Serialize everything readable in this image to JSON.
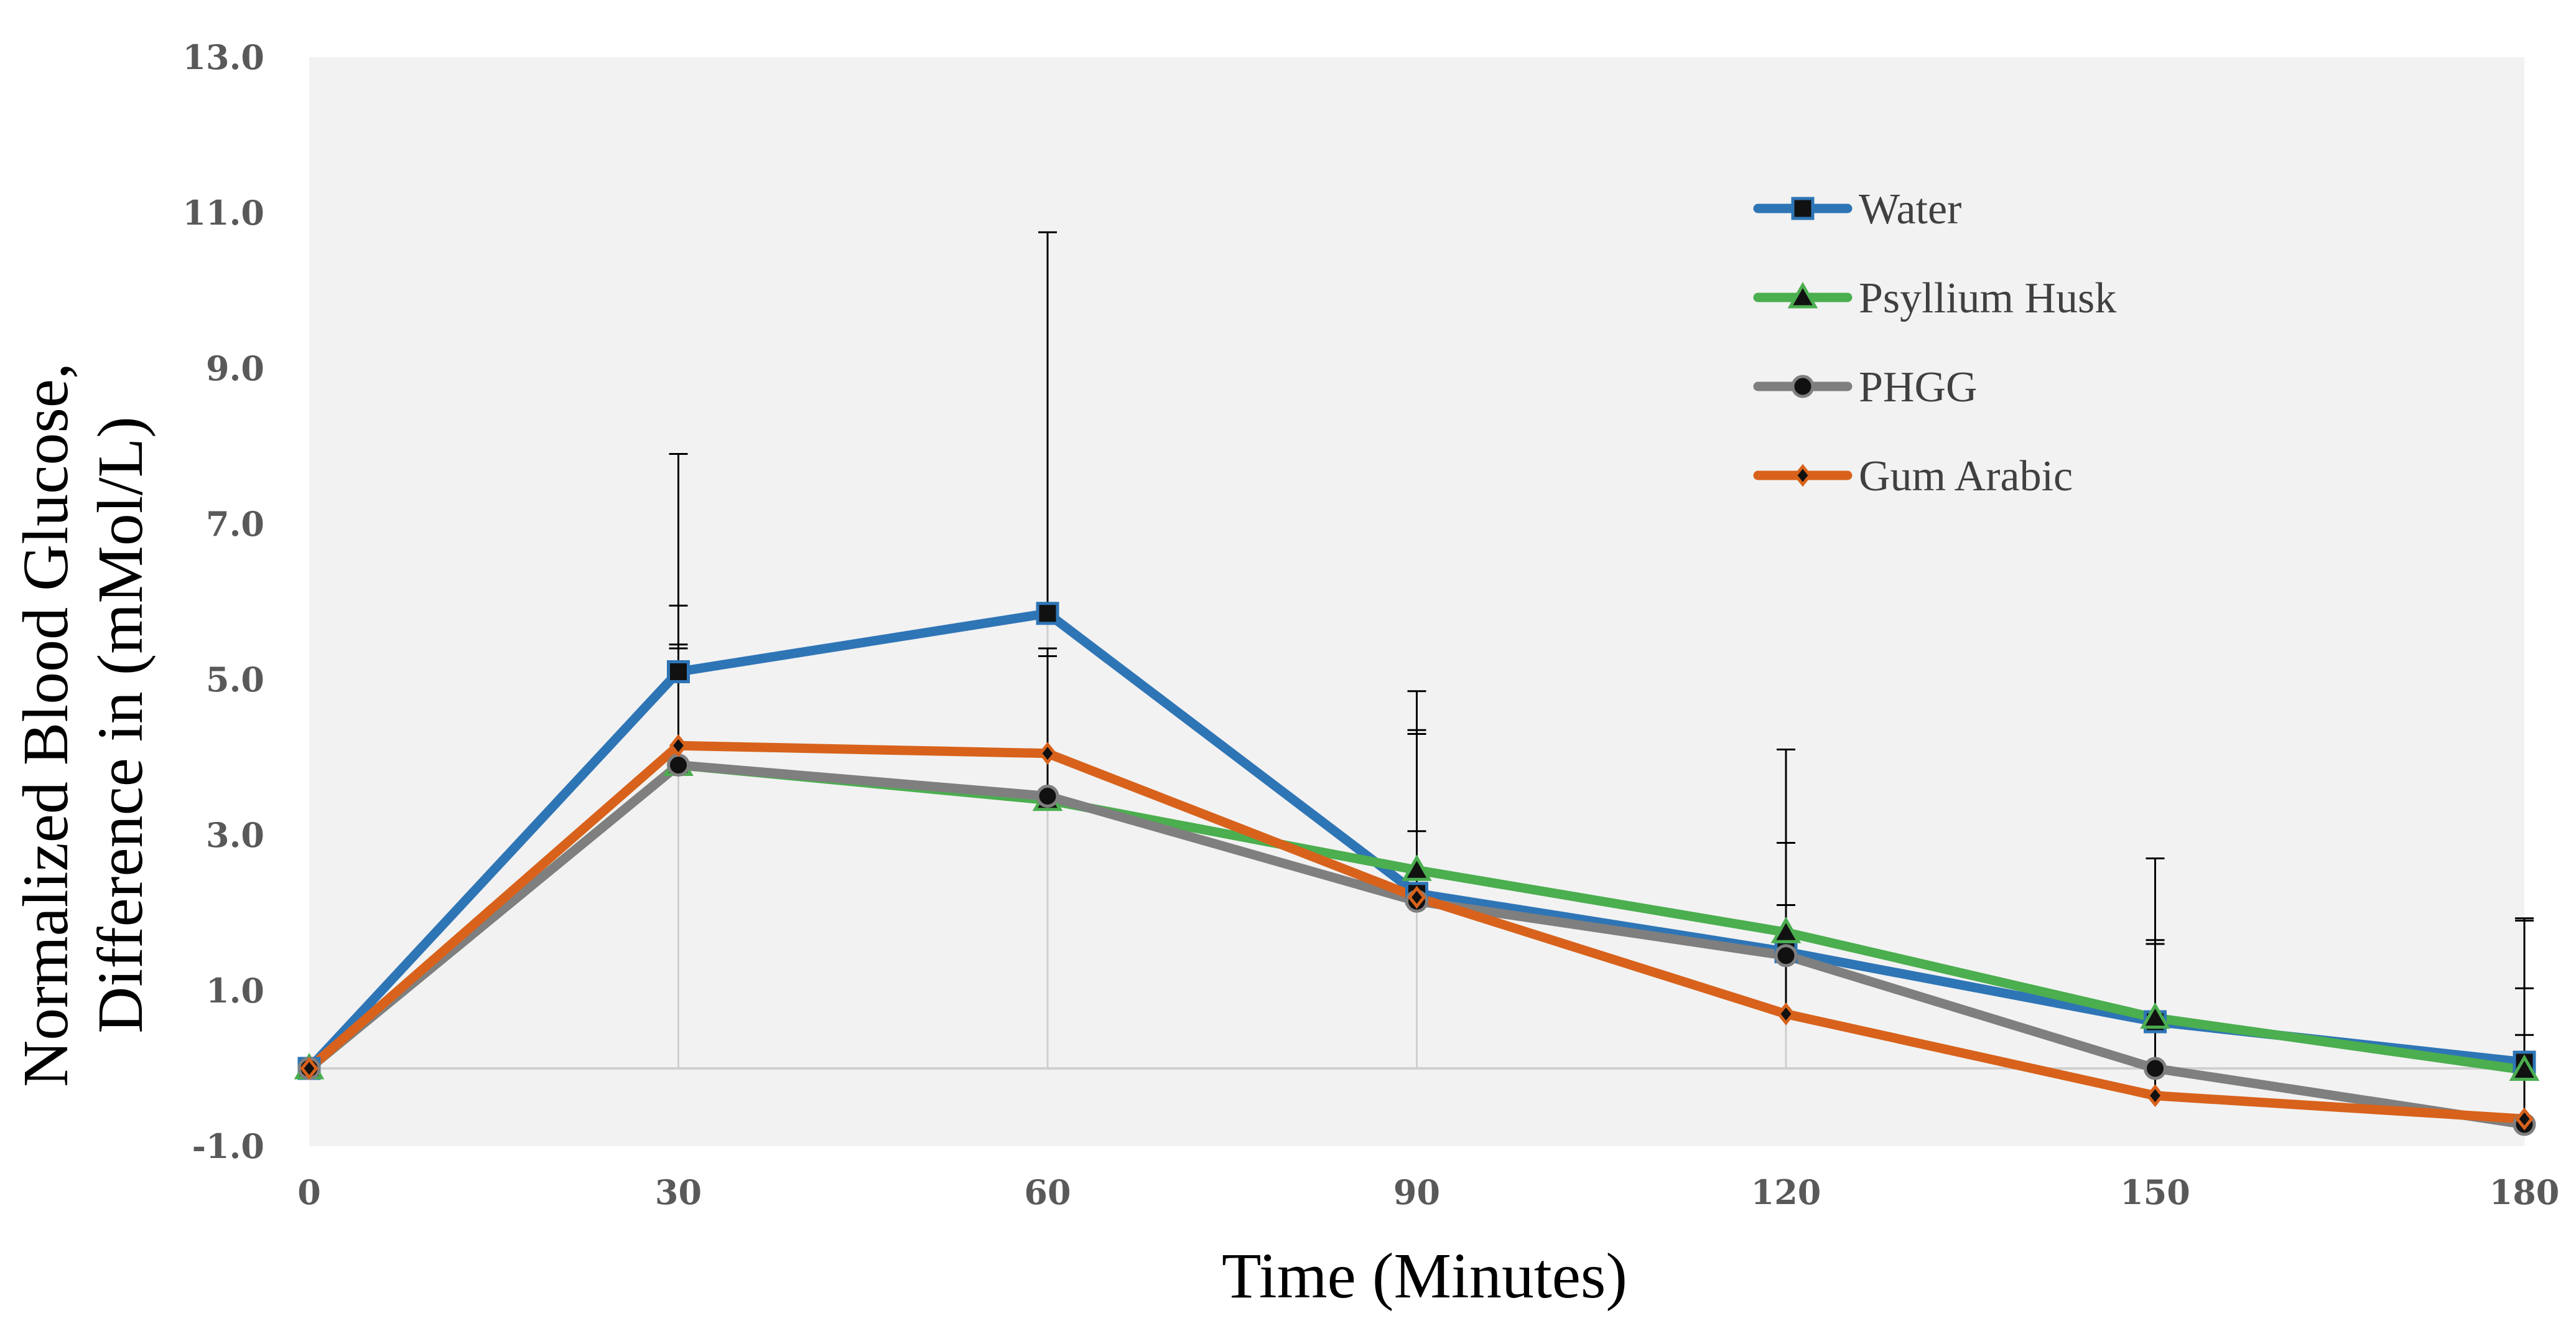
{
  "chart_data": {
    "type": "line",
    "title": "",
    "xlabel": "Time (Minutes)",
    "ylabel_line1": "Normalized Blood Glucose,",
    "ylabel_line2": "Difference in  (mMol/L)",
    "x": [
      0,
      30,
      60,
      90,
      120,
      150,
      180
    ],
    "x_tick_labels": [
      "0",
      "30",
      "60",
      "90",
      "120",
      "150",
      "180"
    ],
    "y_tick_labels": [
      "13.0",
      "11.0",
      "9.0",
      "7.0",
      "5.0",
      "3.0",
      "1.0",
      "-1.0"
    ],
    "ylim": [
      -1.0,
      13.0
    ],
    "xlim": [
      0,
      180
    ],
    "grid": false,
    "legend_position": "top-right",
    "series": [
      {
        "name": "Water",
        "color": "#2E75B6",
        "marker": "square",
        "values": [
          0,
          5.1,
          5.85,
          2.25,
          1.5,
          0.6,
          0.08
        ],
        "error": [
          0,
          2.8,
          4.9,
          2.6,
          2.6,
          2.1,
          1.85
        ]
      },
      {
        "name": "Psyllium Husk",
        "color": "#4BAE4F",
        "marker": "triangle",
        "values": [
          0,
          3.9,
          3.45,
          2.55,
          1.75,
          0.65,
          -0.02
        ],
        "error": [
          0,
          1.5,
          1.85,
          1.8,
          1.15,
          0.95,
          1.05
        ]
      },
      {
        "name": "PHGG",
        "color": "#7F7F7F",
        "marker": "circle",
        "values": [
          0,
          3.9,
          3.5,
          2.15,
          1.45,
          0.0,
          -0.72
        ],
        "error": [
          0,
          1.55,
          1.9,
          2.15,
          1.45,
          1.6,
          1.15
        ]
      },
      {
        "name": "Gum Arabic",
        "color": "#D8621B",
        "marker": "diamond",
        "values": [
          0,
          4.15,
          4.05,
          2.2,
          0.7,
          -0.35,
          -0.65
        ],
        "error": [
          0,
          1.8,
          1.25,
          0.85,
          1.4,
          2.0,
          2.55
        ]
      }
    ]
  }
}
